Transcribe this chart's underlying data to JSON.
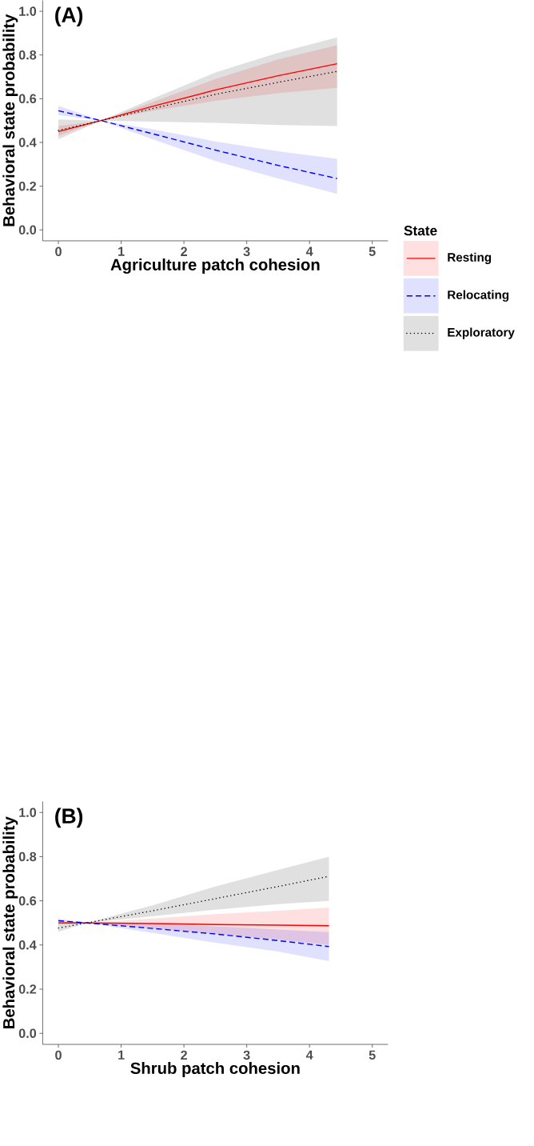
{
  "chart_data": [
    {
      "type": "line",
      "xlabel": "Agriculture patch cohesion",
      "ylabel": "Behavioral state probability",
      "annotations": [
        "(A)"
      ],
      "legend_title": "State",
      "legend": "right",
      "xlim": [
        -0.25,
        5.25
      ],
      "ylim": [
        -0.05,
        1.05
      ],
      "xticks": [
        0,
        1,
        2,
        3,
        4,
        5
      ],
      "yticks": [
        {
          "value": 0,
          "label": "0.0"
        },
        {
          "value": 0.2,
          "label": "0.2"
        },
        {
          "value": 0.4,
          "label": "0.4"
        },
        {
          "value": 0.6,
          "label": "0.6"
        },
        {
          "value": 0.8,
          "label": "0.8"
        },
        {
          "value": 1.0,
          "label": "1.0"
        }
      ],
      "series": [
        {
          "name": "Resting",
          "color": "#ff0000",
          "line_style": "solid",
          "x": [
            0,
            0.68,
            1.5,
            2.5,
            3.5,
            4.44
          ],
          "values": [
            0.45,
            0.5,
            0.565,
            0.64,
            0.705,
            0.76
          ],
          "lower": [
            0.43,
            0.5,
            0.545,
            0.59,
            0.625,
            0.65
          ],
          "upper": [
            0.475,
            0.5,
            0.585,
            0.69,
            0.78,
            0.845
          ]
        },
        {
          "name": "Relocating",
          "color": "#0000ff",
          "line_style": "dashed",
          "x": [
            0,
            0.68,
            1.5,
            2.5,
            3.5,
            4.44
          ],
          "values": [
            0.545,
            0.5,
            0.44,
            0.365,
            0.295,
            0.235
          ],
          "lower": [
            0.525,
            0.5,
            0.415,
            0.315,
            0.235,
            0.165
          ],
          "upper": [
            0.567,
            0.5,
            0.46,
            0.405,
            0.36,
            0.325
          ]
        },
        {
          "name": "Exploratory",
          "color": "#000000",
          "line_style": "dotted",
          "x": [
            0,
            0.68,
            1.5,
            2.5,
            3.5,
            4.44
          ],
          "values": [
            0.455,
            0.5,
            0.555,
            0.62,
            0.675,
            0.725
          ],
          "lower": [
            0.415,
            0.5,
            0.495,
            0.49,
            0.48,
            0.475
          ],
          "upper": [
            0.505,
            0.5,
            0.6,
            0.72,
            0.81,
            0.88
          ]
        }
      ]
    },
    {
      "type": "line",
      "xlabel": "Shrub patch cohesion",
      "ylabel": "Behavioral state probability",
      "annotations": [
        "(B)"
      ],
      "xlim": [
        -0.25,
        5.25
      ],
      "ylim": [
        -0.05,
        1.05
      ],
      "xticks": [
        0,
        1,
        2,
        3,
        4,
        5
      ],
      "yticks": [
        {
          "value": 0,
          "label": "0.0"
        },
        {
          "value": 0.2,
          "label": "0.2"
        },
        {
          "value": 0.4,
          "label": "0.4"
        },
        {
          "value": 0.6,
          "label": "0.6"
        },
        {
          "value": 0.8,
          "label": "0.8"
        },
        {
          "value": 1.0,
          "label": "1.0"
        }
      ],
      "series": [
        {
          "color": "#ff0000",
          "line_style": "solid",
          "x": [
            0,
            0.45,
            1.5,
            2.5,
            3.5,
            4.31
          ],
          "values": [
            0.5,
            0.5,
            0.497,
            0.493,
            0.49,
            0.487
          ],
          "lower": [
            0.49,
            0.5,
            0.475,
            0.45,
            0.425,
            0.4
          ],
          "upper": [
            0.51,
            0.5,
            0.52,
            0.54,
            0.555,
            0.57
          ]
        },
        {
          "color": "#0000ff",
          "line_style": "dashed",
          "x": [
            0,
            0.45,
            1.5,
            2.5,
            3.5,
            4.31
          ],
          "values": [
            0.51,
            0.5,
            0.475,
            0.45,
            0.42,
            0.393
          ],
          "lower": [
            0.5,
            0.5,
            0.455,
            0.41,
            0.37,
            0.327
          ],
          "upper": [
            0.52,
            0.5,
            0.495,
            0.485,
            0.47,
            0.458
          ]
        },
        {
          "color": "#000000",
          "line_style": "dotted",
          "x": [
            0,
            0.45,
            1.5,
            2.5,
            3.5,
            4.31
          ],
          "values": [
            0.477,
            0.5,
            0.555,
            0.61,
            0.665,
            0.711
          ],
          "lower": [
            0.46,
            0.5,
            0.53,
            0.56,
            0.585,
            0.6
          ],
          "upper": [
            0.495,
            0.5,
            0.58,
            0.665,
            0.74,
            0.8
          ]
        }
      ]
    }
  ]
}
